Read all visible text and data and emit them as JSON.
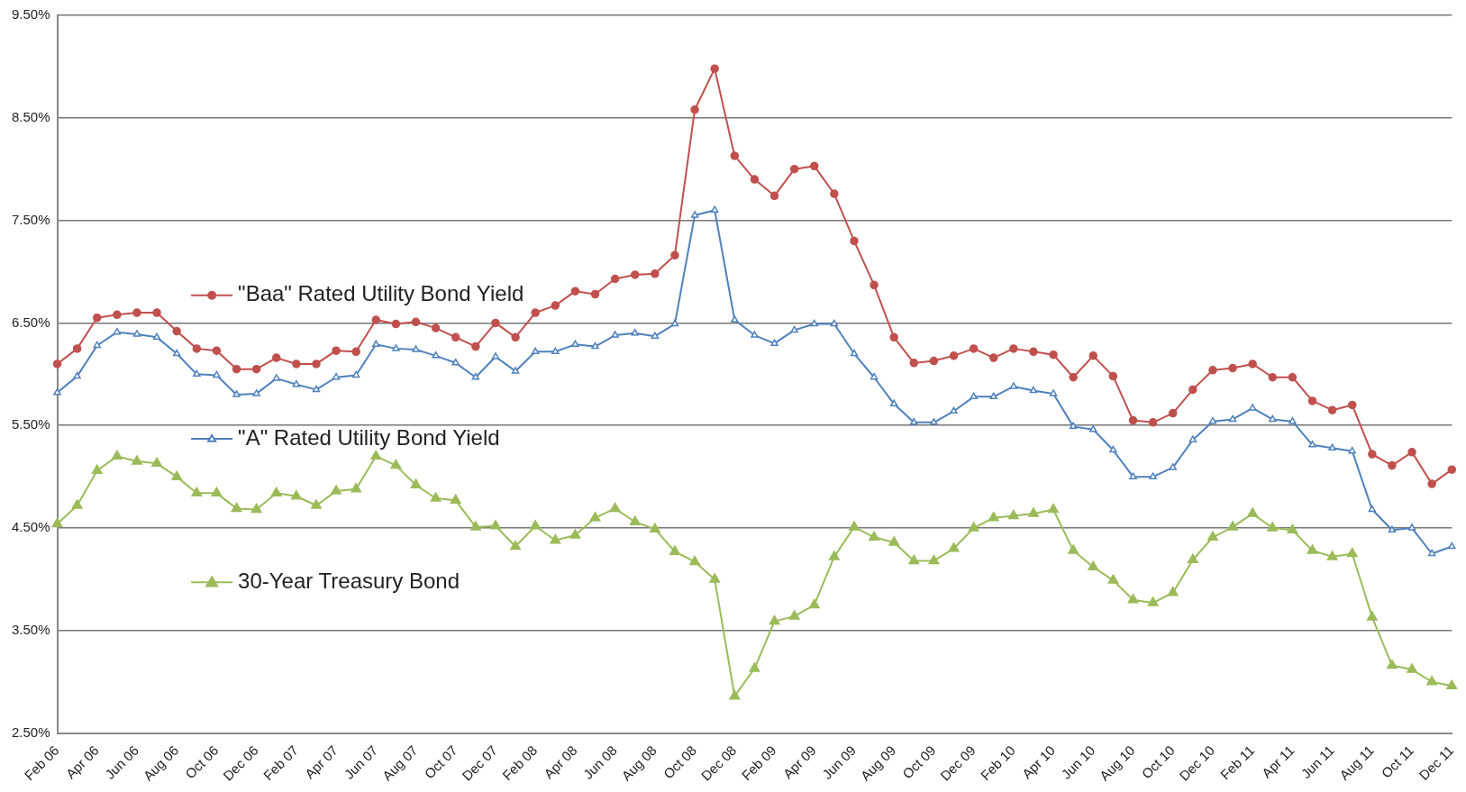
{
  "chart_data": {
    "type": "line",
    "categories": [
      "Feb 06",
      null,
      "Apr 06",
      null,
      "Jun 06",
      null,
      "Aug 06",
      null,
      "Oct 06",
      null,
      "Dec 06",
      null,
      "Feb 07",
      null,
      "Apr 07",
      null,
      "Jun 07",
      null,
      "Aug 07",
      null,
      "Oct 07",
      null,
      "Dec 07",
      null,
      "Feb 08",
      null,
      "Apr 08",
      null,
      "Jun 08",
      null,
      "Aug 08",
      null,
      "Oct 08",
      null,
      "Dec 08",
      null,
      "Feb 09",
      null,
      "Apr 09",
      null,
      "Jun 09",
      null,
      "Aug 09",
      null,
      "Oct 09",
      null,
      "Dec 09",
      null,
      "Feb 10",
      null,
      "Apr 10",
      null,
      "Jun 10",
      null,
      "Aug 10",
      null,
      "Oct 10",
      null,
      "Dec 10",
      null,
      "Feb 11",
      null,
      "Apr 11",
      null,
      "Jun 11",
      null,
      "Aug 11",
      null,
      "Oct 11",
      null,
      "Dec 11"
    ],
    "series": [
      {
        "name": "\"Baa\" Rated Utility Bond Yield",
        "color": "#c0504d",
        "marker": "circle",
        "values": [
          6.1,
          6.25,
          6.55,
          6.58,
          6.6,
          6.6,
          6.42,
          6.25,
          6.23,
          6.05,
          6.05,
          6.16,
          6.1,
          6.1,
          6.23,
          6.22,
          6.53,
          6.49,
          6.51,
          6.45,
          6.36,
          6.27,
          6.5,
          6.36,
          6.6,
          6.67,
          6.81,
          6.78,
          6.93,
          6.97,
          6.98,
          7.16,
          8.58,
          8.98,
          8.13,
          7.9,
          7.74,
          8.0,
          8.03,
          7.76,
          7.3,
          6.87,
          6.36,
          6.11,
          6.13,
          6.18,
          6.25,
          6.16,
          6.25,
          6.22,
          6.19,
          5.97,
          6.18,
          5.98,
          5.55,
          5.53,
          5.62,
          5.85,
          6.04,
          6.06,
          6.1,
          5.97,
          5.97,
          5.74,
          5.65,
          5.7,
          5.22,
          5.11,
          5.24,
          4.93,
          5.07
        ]
      },
      {
        "name": "\"A\" Rated Utility Bond Yield",
        "color": "#4f81bd",
        "marker": "triangle",
        "values": [
          5.82,
          5.98,
          6.28,
          6.41,
          6.39,
          6.36,
          6.2,
          6.0,
          5.99,
          5.8,
          5.81,
          5.96,
          5.9,
          5.85,
          5.97,
          5.99,
          6.29,
          6.25,
          6.24,
          6.18,
          6.11,
          5.97,
          6.17,
          6.03,
          6.22,
          6.22,
          6.29,
          6.27,
          6.38,
          6.4,
          6.37,
          6.49,
          7.55,
          7.6,
          6.53,
          6.38,
          6.3,
          6.43,
          6.49,
          6.49,
          6.2,
          5.97,
          5.71,
          5.53,
          5.53,
          5.64,
          5.78,
          5.78,
          5.88,
          5.84,
          5.81,
          5.49,
          5.46,
          5.26,
          5.0,
          5.0,
          5.09,
          5.36,
          5.54,
          5.56,
          5.67,
          5.56,
          5.54,
          5.31,
          5.28,
          5.25,
          4.68,
          4.48,
          4.5,
          4.25,
          4.32
        ]
      },
      {
        "name": "30-Year Treasury Bond",
        "color": "#9bbb59",
        "marker": "triangle",
        "values": [
          4.54,
          4.72,
          5.06,
          5.2,
          5.15,
          5.13,
          5.0,
          4.84,
          4.84,
          4.69,
          4.68,
          4.84,
          4.81,
          4.72,
          4.86,
          4.88,
          5.2,
          5.11,
          4.92,
          4.79,
          4.77,
          4.51,
          4.52,
          4.32,
          4.52,
          4.38,
          4.43,
          4.6,
          4.69,
          4.56,
          4.49,
          4.27,
          4.17,
          4.0,
          2.86,
          3.13,
          3.59,
          3.64,
          3.75,
          4.22,
          4.51,
          4.41,
          4.36,
          4.18,
          4.18,
          4.3,
          4.5,
          4.6,
          4.62,
          4.64,
          4.68,
          4.28,
          4.12,
          3.99,
          3.8,
          3.77,
          3.87,
          4.19,
          4.41,
          4.51,
          4.64,
          4.5,
          4.48,
          4.28,
          4.22,
          4.25,
          3.63,
          3.16,
          3.12,
          3.0,
          2.96
        ]
      }
    ],
    "ylim": [
      2.5,
      9.5
    ],
    "yticks": [
      {
        "value": 2.5,
        "label": "2.50%"
      },
      {
        "value": 3.5,
        "label": "3.50%"
      },
      {
        "value": 4.5,
        "label": "4.50%"
      },
      {
        "value": 5.5,
        "label": "5.50%"
      },
      {
        "value": 6.5,
        "label": "6.50%"
      },
      {
        "value": 7.5,
        "label": "7.50%"
      },
      {
        "value": 8.5,
        "label": "8.50%"
      },
      {
        "value": 9.5,
        "label": "9.50%"
      }
    ],
    "grid": "y",
    "legend": "left",
    "line_style": "solid"
  }
}
